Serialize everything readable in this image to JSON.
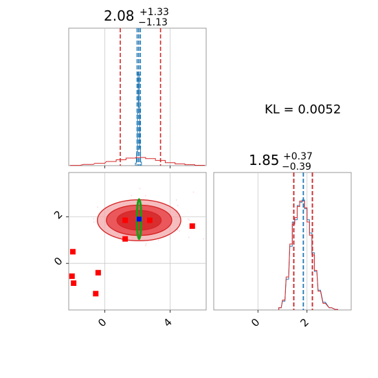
{
  "chart_data": [
    {
      "type": "histogram",
      "panel": "marginal-x",
      "title": {
        "value": "2.08",
        "plus": "+1.33",
        "minus": "−1.13"
      },
      "xlim": [
        -2.2,
        6.2
      ],
      "xgrid": [
        0,
        4
      ],
      "series": [
        {
          "name": "",
          "color": "#1f77b4",
          "bins": [
            {
              "x": 1.9,
              "h": 0.02
            },
            {
              "x": 1.98,
              "h": 0.12
            },
            {
              "x": 2.03,
              "h": 0.45
            },
            {
              "x": 2.06,
              "h": 0.8
            },
            {
              "x": 2.09,
              "h": 0.78
            },
            {
              "x": 2.12,
              "h": 0.5
            },
            {
              "x": 2.16,
              "h": 0.15
            },
            {
              "x": 2.22,
              "h": 0.03
            }
          ],
          "interval_lines": [
            1.98,
            2.08,
            2.18
          ]
        },
        {
          "name": "",
          "color": "#d62728",
          "bins": [
            {
              "x": -1.8,
              "h": 0.002
            },
            {
              "x": -1.0,
              "h": 0.01
            },
            {
              "x": -0.3,
              "h": 0.02
            },
            {
              "x": 0.4,
              "h": 0.035
            },
            {
              "x": 1.0,
              "h": 0.05
            },
            {
              "x": 1.6,
              "h": 0.065
            },
            {
              "x": 2.2,
              "h": 0.07
            },
            {
              "x": 2.8,
              "h": 0.06
            },
            {
              "x": 3.4,
              "h": 0.045
            },
            {
              "x": 4.0,
              "h": 0.025
            },
            {
              "x": 4.6,
              "h": 0.015
            },
            {
              "x": 5.2,
              "h": 0.008
            },
            {
              "x": 5.8,
              "h": 0.003
            }
          ],
          "interval_lines": [
            0.95,
            3.41
          ]
        }
      ]
    },
    {
      "type": "scatter",
      "panel": "joint",
      "xlim": [
        -2.2,
        6.2
      ],
      "ylim": [
        -2.0,
        3.9
      ],
      "xgrid": [
        0,
        4
      ],
      "ygrid": [
        0,
        2
      ],
      "xticklabels": [
        "0",
        "4"
      ],
      "yticklabels": [
        "0",
        "2"
      ],
      "contours_red": {
        "center": [
          2.1,
          1.85
        ],
        "radii": [
          [
            1.35,
            0.42
          ],
          [
            2.0,
            0.65
          ],
          [
            2.55,
            0.88
          ]
        ],
        "colors": [
          "#d62728",
          "#e8464a",
          "#f3a7aa"
        ]
      },
      "ellipse_green": {
        "center": [
          2.1,
          1.9
        ],
        "rx": 0.13,
        "ry": 0.85,
        "color": "#18a018"
      },
      "truth_point_blue": [
        2.1,
        1.9
      ],
      "points_red": [
        [
          1.25,
          1.85
        ],
        [
          2.75,
          1.85
        ],
        [
          1.25,
          1.05
        ],
        [
          5.35,
          1.6
        ],
        [
          -1.95,
          0.5
        ],
        [
          -2.0,
          -0.55
        ],
        [
          -1.9,
          -0.85
        ],
        [
          -0.4,
          -0.4
        ],
        [
          -0.55,
          -1.3
        ]
      ]
    },
    {
      "type": "histogram",
      "panel": "marginal-y",
      "title": {
        "value": "1.85",
        "plus": "+0.37",
        "minus": "−0.39"
      },
      "xlim": [
        -1.8,
        3.8
      ],
      "xgrid": [
        0,
        2
      ],
      "xticklabels": [
        "0",
        "2"
      ],
      "series": [
        {
          "name": "",
          "color": "#1f77b4",
          "bins": [
            {
              "x": 0.9,
              "h": 0.02
            },
            {
              "x": 1.05,
              "h": 0.08
            },
            {
              "x": 1.2,
              "h": 0.28
            },
            {
              "x": 1.35,
              "h": 0.58
            },
            {
              "x": 1.45,
              "h": 0.8
            },
            {
              "x": 1.55,
              "h": 0.82
            },
            {
              "x": 1.65,
              "h": 0.95
            },
            {
              "x": 1.75,
              "h": 0.98
            },
            {
              "x": 1.85,
              "h": 1.0
            },
            {
              "x": 1.95,
              "h": 0.92
            },
            {
              "x": 2.05,
              "h": 0.82
            },
            {
              "x": 2.15,
              "h": 0.7
            },
            {
              "x": 2.25,
              "h": 0.52
            },
            {
              "x": 2.35,
              "h": 0.35
            },
            {
              "x": 2.5,
              "h": 0.18
            },
            {
              "x": 2.7,
              "h": 0.07
            },
            {
              "x": 2.95,
              "h": 0.02
            },
            {
              "x": 3.2,
              "h": 0.005
            }
          ],
          "interval_lines": [
            1.46,
            1.85,
            2.22
          ]
        },
        {
          "name": "",
          "color": "#d62728",
          "bins": [
            {
              "x": 0.9,
              "h": 0.02
            },
            {
              "x": 1.05,
              "h": 0.09
            },
            {
              "x": 1.2,
              "h": 0.3
            },
            {
              "x": 1.35,
              "h": 0.6
            },
            {
              "x": 1.45,
              "h": 0.78
            },
            {
              "x": 1.55,
              "h": 0.84
            },
            {
              "x": 1.65,
              "h": 0.94
            },
            {
              "x": 1.75,
              "h": 0.99
            },
            {
              "x": 1.85,
              "h": 0.99
            },
            {
              "x": 1.95,
              "h": 0.93
            },
            {
              "x": 2.05,
              "h": 0.8
            },
            {
              "x": 2.15,
              "h": 0.68
            },
            {
              "x": 2.25,
              "h": 0.5
            },
            {
              "x": 2.35,
              "h": 0.36
            },
            {
              "x": 2.5,
              "h": 0.17
            },
            {
              "x": 2.7,
              "h": 0.06
            },
            {
              "x": 2.95,
              "h": 0.02
            },
            {
              "x": 3.2,
              "h": 0.005
            }
          ],
          "interval_lines": [
            1.46,
            2.22
          ]
        }
      ]
    }
  ],
  "kl_text": "KL = 0.0052"
}
